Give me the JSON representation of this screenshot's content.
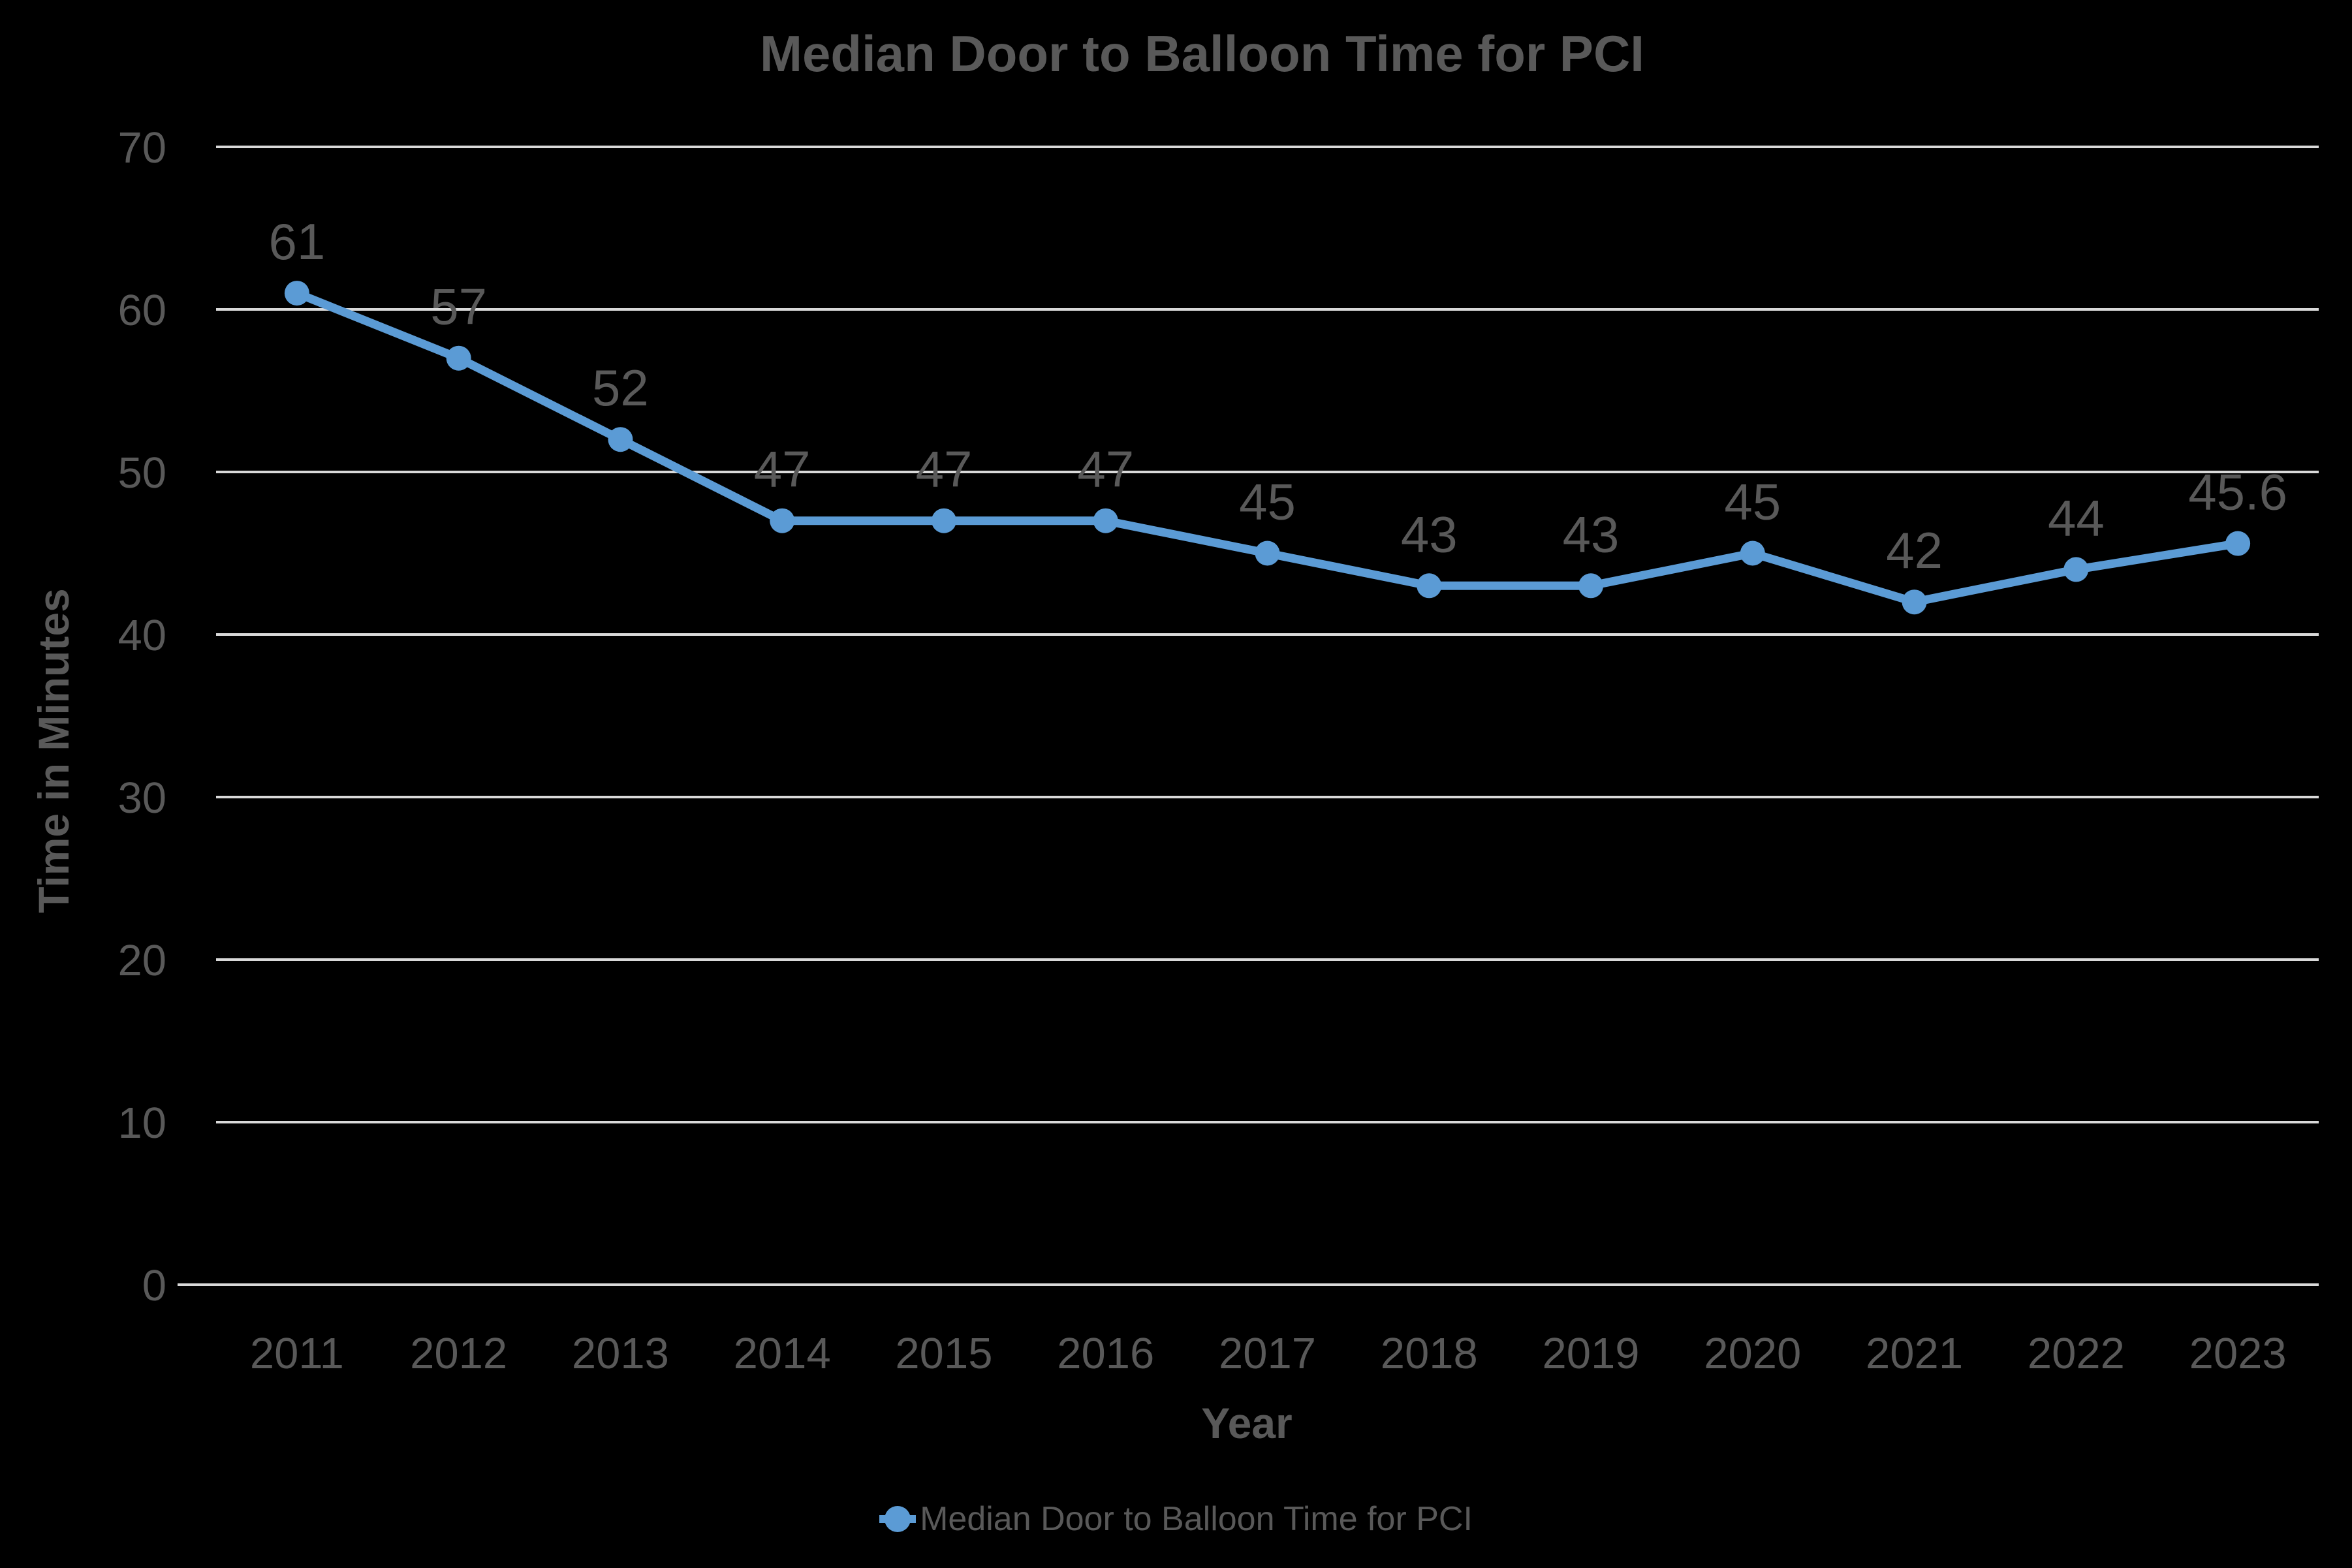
{
  "chart_data": {
    "type": "line",
    "title": "Median Door to Balloon Time for PCI",
    "xlabel": "Year",
    "ylabel": "Time in Minutes",
    "categories": [
      "2011",
      "2012",
      "2013",
      "2014",
      "2015",
      "2016",
      "2017",
      "2018",
      "2019",
      "2020",
      "2021",
      "2022",
      "2023"
    ],
    "series": [
      {
        "name": "Median Door to Balloon Time for PCI",
        "values": [
          61,
          57,
          52,
          47,
          47,
          47,
          45,
          43,
          43,
          45,
          42,
          44,
          45.6
        ],
        "data_labels": [
          "61",
          "57",
          "52",
          "47",
          "47",
          "47",
          "45",
          "43",
          "43",
          "45",
          "42",
          "44",
          "45.6"
        ]
      }
    ],
    "ylim": [
      0,
      70
    ],
    "yticks": [
      0,
      10,
      20,
      30,
      40,
      50,
      60,
      70
    ],
    "grid": true,
    "legend_position": "bottom",
    "colors": {
      "background": "#000000",
      "line": "#5B9BD5",
      "marker": "#5B9BD5",
      "gridline": "#D9D9D9",
      "text": "#595959"
    }
  }
}
